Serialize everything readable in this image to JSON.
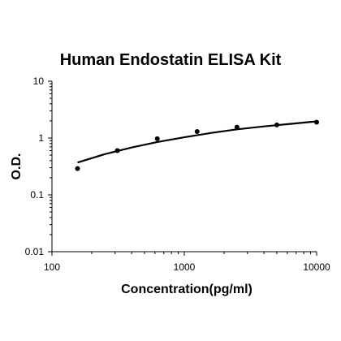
{
  "chart_data": {
    "type": "scatter",
    "title": "Human Endostatin ELISA Kit",
    "xlabel": "Concentration(pg/ml)",
    "ylabel": "O.D.",
    "x_scale": "log",
    "y_scale": "log",
    "xlim": [
      100,
      10000
    ],
    "ylim": [
      0.01,
      10
    ],
    "x_ticks": [
      "100",
      "1000",
      "10000"
    ],
    "y_ticks": [
      "10",
      "1",
      "0.1",
      "0.01"
    ],
    "grid": false,
    "legend": "none",
    "series": [
      {
        "points": [
          {
            "x": 156,
            "y": 0.29
          },
          {
            "x": 312,
            "y": 0.6
          },
          {
            "x": 625,
            "y": 0.97
          },
          {
            "x": 1250,
            "y": 1.3
          },
          {
            "x": 2500,
            "y": 1.55
          },
          {
            "x": 5000,
            "y": 1.7
          },
          {
            "x": 10000,
            "y": 1.9
          }
        ],
        "fit_curve": [
          {
            "x": 156,
            "y": 0.37
          },
          {
            "x": 250,
            "y": 0.52
          },
          {
            "x": 400,
            "y": 0.68
          },
          {
            "x": 625,
            "y": 0.85
          },
          {
            "x": 1000,
            "y": 1.03
          },
          {
            "x": 1600,
            "y": 1.23
          },
          {
            "x": 2500,
            "y": 1.42
          },
          {
            "x": 4000,
            "y": 1.6
          },
          {
            "x": 6300,
            "y": 1.77
          },
          {
            "x": 10000,
            "y": 1.96
          }
        ]
      }
    ],
    "colors": {
      "marker": "#000000",
      "curve": "#000000",
      "axis": "#000000"
    }
  }
}
